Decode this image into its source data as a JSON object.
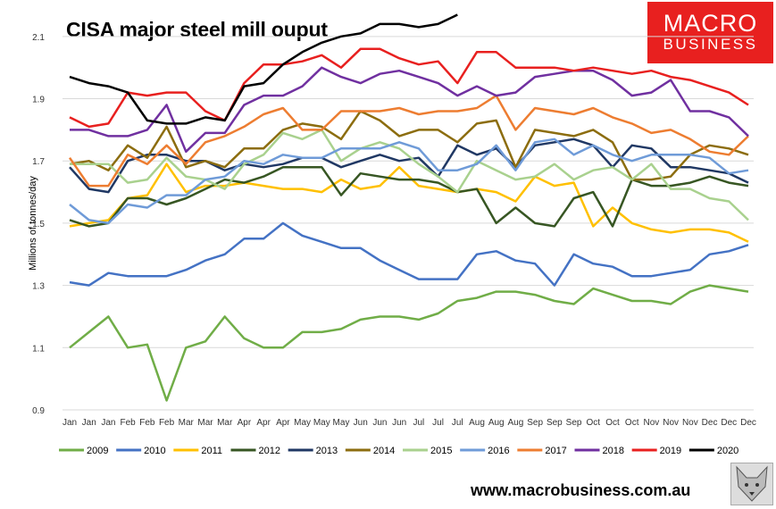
{
  "header": {
    "title": "CISA major steel mill ouput",
    "logo_line1": "MACRO",
    "logo_line2": "BUSINESS",
    "url": "www.macrobusiness.com.au"
  },
  "chart_data": {
    "type": "line",
    "ylabel": "Millions of tonnes/day",
    "ylim": [
      0.9,
      2.2
    ],
    "yticks": [
      0.9,
      1.1,
      1.3,
      1.5,
      1.7,
      1.9,
      2.1
    ],
    "grid": "horizontal",
    "legend": "bottom",
    "x": [
      "Jan",
      "Jan",
      "Jan",
      "Feb",
      "Feb",
      "Feb",
      "Mar",
      "Mar",
      "Mar",
      "Apr",
      "Apr",
      "Apr",
      "May",
      "May",
      "May",
      "Jun",
      "Jun",
      "Jun",
      "Jul",
      "Jul",
      "Jul",
      "Aug",
      "Aug",
      "Aug",
      "Sep",
      "Sep",
      "Sep",
      "Oct",
      "Oct",
      "Oct",
      "Nov",
      "Nov",
      "Nov",
      "Dec",
      "Dec",
      "Dec"
    ],
    "series": [
      {
        "name": "2009",
        "color": "#70ad47",
        "values": [
          1.1,
          1.15,
          1.2,
          1.1,
          1.11,
          0.93,
          1.1,
          1.12,
          1.2,
          1.13,
          1.1,
          1.1,
          1.15,
          1.15,
          1.16,
          1.19,
          1.2,
          1.2,
          1.19,
          1.21,
          1.25,
          1.26,
          1.28,
          1.28,
          1.27,
          1.25,
          1.24,
          1.29,
          1.27,
          1.25,
          1.25,
          1.24,
          1.28,
          1.3,
          1.29,
          1.28
        ]
      },
      {
        "name": "2010",
        "color": "#4472c4",
        "values": [
          1.31,
          1.3,
          1.34,
          1.33,
          1.33,
          1.33,
          1.35,
          1.38,
          1.4,
          1.45,
          1.45,
          1.5,
          1.46,
          1.44,
          1.42,
          1.42,
          1.38,
          1.35,
          1.32,
          1.32,
          1.32,
          1.4,
          1.41,
          1.38,
          1.37,
          1.3,
          1.4,
          1.37,
          1.36,
          1.33,
          1.33,
          1.34,
          1.35,
          1.4,
          1.41,
          1.43
        ]
      },
      {
        "name": "2011",
        "color": "#ffc000",
        "values": [
          1.49,
          1.5,
          1.51,
          1.58,
          1.59,
          1.69,
          1.6,
          1.62,
          1.62,
          1.63,
          1.62,
          1.61,
          1.61,
          1.6,
          1.64,
          1.61,
          1.62,
          1.68,
          1.62,
          1.61,
          1.6,
          1.61,
          1.6,
          1.57,
          1.65,
          1.62,
          1.63,
          1.49,
          1.55,
          1.5,
          1.48,
          1.47,
          1.48,
          1.48,
          1.47,
          1.44
        ]
      },
      {
        "name": "2012",
        "color": "#375623",
        "values": [
          1.51,
          1.49,
          1.5,
          1.58,
          1.58,
          1.56,
          1.58,
          1.61,
          1.64,
          1.63,
          1.65,
          1.68,
          1.68,
          1.68,
          1.59,
          1.66,
          1.65,
          1.64,
          1.64,
          1.63,
          1.6,
          1.61,
          1.5,
          1.55,
          1.5,
          1.49,
          1.58,
          1.6,
          1.49,
          1.64,
          1.62,
          1.62,
          1.63,
          1.65,
          1.63,
          1.62
        ]
      },
      {
        "name": "2013",
        "color": "#203864",
        "values": [
          1.68,
          1.61,
          1.6,
          1.7,
          1.72,
          1.72,
          1.7,
          1.7,
          1.67,
          1.69,
          1.68,
          1.69,
          1.71,
          1.71,
          1.68,
          1.7,
          1.72,
          1.7,
          1.71,
          1.65,
          1.75,
          1.72,
          1.74,
          1.68,
          1.75,
          1.76,
          1.77,
          1.75,
          1.68,
          1.75,
          1.74,
          1.68,
          1.68,
          1.67,
          1.66,
          1.63
        ]
      },
      {
        "name": "2014",
        "color": "#8c6d0f",
        "values": [
          1.69,
          1.7,
          1.67,
          1.75,
          1.71,
          1.81,
          1.68,
          1.7,
          1.68,
          1.74,
          1.74,
          1.8,
          1.82,
          1.81,
          1.77,
          1.86,
          1.83,
          1.78,
          1.8,
          1.8,
          1.76,
          1.82,
          1.83,
          1.68,
          1.8,
          1.79,
          1.78,
          1.8,
          1.76,
          1.64,
          1.64,
          1.65,
          1.72,
          1.75,
          1.74,
          1.72
        ]
      },
      {
        "name": "2015",
        "color": "#a9d18e",
        "values": [
          1.69,
          1.69,
          1.69,
          1.63,
          1.64,
          1.71,
          1.65,
          1.64,
          1.61,
          1.69,
          1.72,
          1.79,
          1.77,
          1.8,
          1.7,
          1.74,
          1.76,
          1.74,
          1.69,
          1.65,
          1.6,
          1.7,
          1.67,
          1.64,
          1.65,
          1.69,
          1.64,
          1.67,
          1.68,
          1.64,
          1.69,
          1.61,
          1.61,
          1.58,
          1.57,
          1.51
        ]
      },
      {
        "name": "2016",
        "color": "#6f9bd8",
        "values": [
          1.56,
          1.51,
          1.5,
          1.56,
          1.55,
          1.59,
          1.59,
          1.64,
          1.65,
          1.7,
          1.69,
          1.72,
          1.71,
          1.71,
          1.74,
          1.74,
          1.74,
          1.76,
          1.74,
          1.67,
          1.67,
          1.69,
          1.75,
          1.67,
          1.76,
          1.77,
          1.72,
          1.75,
          1.72,
          1.7,
          1.72,
          1.72,
          1.72,
          1.71,
          1.66,
          1.67
        ]
      },
      {
        "name": "2017",
        "color": "#ed7d31",
        "values": [
          1.71,
          1.62,
          1.62,
          1.72,
          1.69,
          1.75,
          1.69,
          1.76,
          1.78,
          1.81,
          1.85,
          1.87,
          1.8,
          1.8,
          1.86,
          1.86,
          1.86,
          1.87,
          1.85,
          1.86,
          1.86,
          1.87,
          1.91,
          1.8,
          1.87,
          1.86,
          1.85,
          1.87,
          1.84,
          1.82,
          1.79,
          1.8,
          1.77,
          1.73,
          1.72,
          1.78
        ]
      },
      {
        "name": "2018",
        "color": "#7030a0",
        "values": [
          1.8,
          1.8,
          1.78,
          1.78,
          1.8,
          1.88,
          1.73,
          1.79,
          1.79,
          1.88,
          1.91,
          1.91,
          1.94,
          2.0,
          1.97,
          1.95,
          1.98,
          1.99,
          1.97,
          1.95,
          1.91,
          1.94,
          1.91,
          1.92,
          1.97,
          1.98,
          1.99,
          1.99,
          1.96,
          1.91,
          1.92,
          1.96,
          1.86,
          1.86,
          1.84,
          1.78
        ]
      },
      {
        "name": "2019",
        "color": "#e8201f",
        "values": [
          1.84,
          1.81,
          1.82,
          1.92,
          1.91,
          1.92,
          1.92,
          1.86,
          1.83,
          1.95,
          2.01,
          2.01,
          2.02,
          2.04,
          2.0,
          2.06,
          2.06,
          2.03,
          2.01,
          2.02,
          1.95,
          2.05,
          2.05,
          2.0,
          2.0,
          2.0,
          1.99,
          2.0,
          1.99,
          1.98,
          1.99,
          1.97,
          1.96,
          1.94,
          1.92,
          1.88
        ]
      },
      {
        "name": "2020",
        "color": "#000000",
        "values": [
          1.97,
          1.95,
          1.94,
          1.92,
          1.83,
          1.82,
          1.82,
          1.84,
          1.83,
          1.94,
          1.95,
          2.01,
          2.05,
          2.08,
          2.1,
          2.11,
          2.14,
          2.14,
          2.13,
          2.14,
          2.17,
          null,
          null,
          null,
          null,
          null,
          null,
          null,
          null,
          null,
          null,
          null,
          null,
          null,
          null,
          null
        ]
      }
    ]
  }
}
